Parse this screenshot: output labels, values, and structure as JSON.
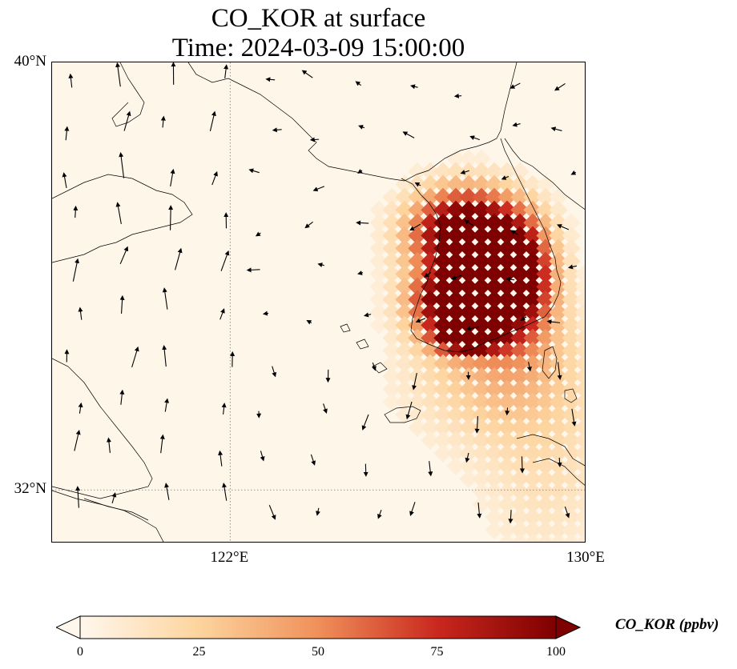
{
  "title": "CO_KOR at surface",
  "subtitle": "Time: 2024-03-09 15:00:00",
  "map": {
    "lon_range": [
      118,
      130
    ],
    "lat_range": [
      31,
      40
    ],
    "lat_ticks": [
      {
        "value": 40,
        "label": "40°N"
      },
      {
        "value": 32,
        "label": "32°N"
      }
    ],
    "lon_ticks": [
      {
        "value": 122,
        "label": "122°E"
      },
      {
        "value": 130,
        "label": "130°E"
      }
    ],
    "gridlines": "dotted",
    "coastlines": true,
    "wind_vectors": true
  },
  "colorbar": {
    "label": "CO_KOR (ppbv)",
    "min": 0,
    "max": 100,
    "extend": "both",
    "colormap": "OrRd",
    "ticks": [
      "0",
      "25",
      "50",
      "75",
      "100"
    ]
  },
  "colors": {
    "background": "#fff6ea",
    "low": "#fff7ec",
    "high": "#7f0000"
  }
}
